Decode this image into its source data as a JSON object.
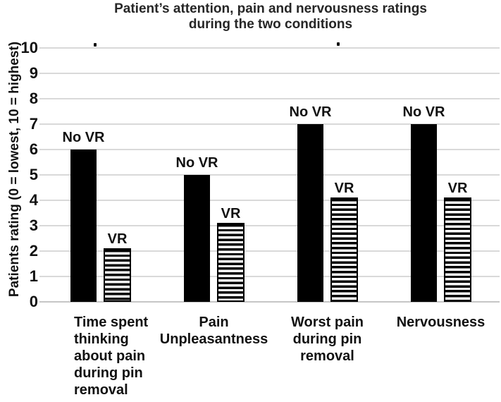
{
  "figure": {
    "title_line1": "Patient’s attention, pain and nervousness ratings",
    "title_line2": "during the two conditions",
    "y_axis_label": "Patients rating (0 = lowest, 10 = highest)"
  },
  "chart_data": {
    "type": "bar",
    "title": "Patient’s attention, pain and nervousness ratings during the two conditions",
    "xlabel": "",
    "ylabel": "Patients rating (0 = lowest, 10 = highest)",
    "ylim": [
      0,
      10
    ],
    "ytick_step": 1,
    "grid": true,
    "legend_position": "labels-above-bars",
    "categories": [
      "Time spent thinking about pain during pin removal",
      "Pain Unpleasantness",
      "Worst pain during pin removal",
      "Nervousness"
    ],
    "category_display_lines": [
      [
        "Time spent",
        "thinking",
        "about pain",
        "during pin",
        "removal"
      ],
      [
        "Pain",
        "Unpleasantness"
      ],
      [
        "Worst pain",
        "during pin",
        "removal"
      ],
      [
        "Nervousness"
      ]
    ],
    "series": [
      {
        "name": "No VR",
        "values": [
          6,
          5,
          7,
          7
        ],
        "fill": "solid",
        "color": "#000000"
      },
      {
        "name": "VR",
        "values": [
          2,
          3,
          4,
          4
        ],
        "fill": "horizontal-stripes",
        "color": "#000000"
      }
    ],
    "colors": {
      "bar": "#000000",
      "gridline": "#d9d9d9",
      "baseline": "#c6c6c6",
      "text": "#1f1f1f",
      "background": "#ffffff"
    }
  }
}
